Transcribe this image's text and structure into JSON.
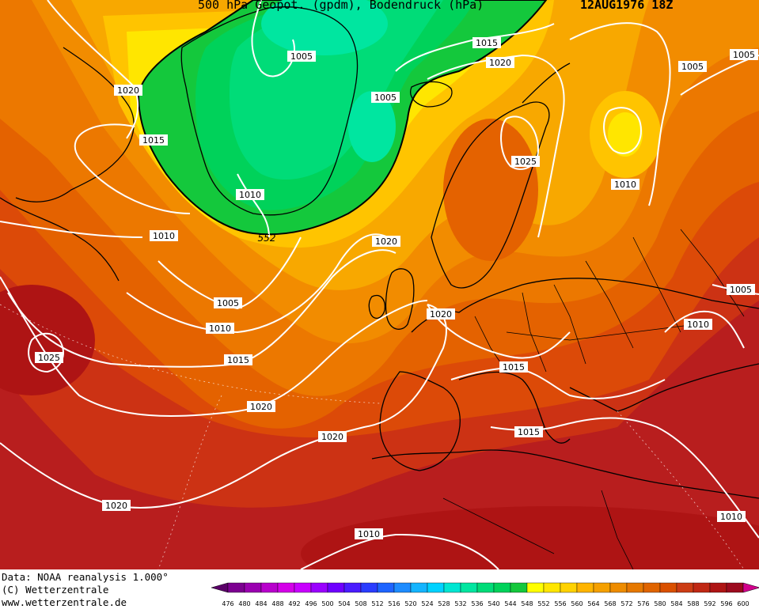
{
  "header": {
    "title": "500 hPa Geopot. (gpdm), Bodendruck (hPa)",
    "date": "12AUG1976 18Z"
  },
  "footer": {
    "data_line": "Data: NOAA reanalysis 1.000°",
    "copyright": "(C) Wetterzentrale",
    "url": "www.wetterzentrale.de"
  },
  "legend": {
    "values": [
      "476",
      "480",
      "484",
      "488",
      "492",
      "496",
      "500",
      "504",
      "508",
      "512",
      "516",
      "520",
      "524",
      "528",
      "532",
      "536",
      "540",
      "544",
      "548",
      "552",
      "556",
      "560",
      "564",
      "568",
      "572",
      "576",
      "580",
      "584",
      "588",
      "592",
      "596",
      "600"
    ],
    "colors": [
      "#5a0068",
      "#7c0090",
      "#9a00b0",
      "#b800cc",
      "#d400e8",
      "#c800ff",
      "#9a00ff",
      "#6e00ff",
      "#4a1cff",
      "#2a3cff",
      "#1e64ff",
      "#1e8cff",
      "#14b4ff",
      "#00d2ff",
      "#00e6d2",
      "#00e6a0",
      "#00dc78",
      "#00d25a",
      "#14c83c",
      "#ffff00",
      "#ffe600",
      "#ffd200",
      "#ffb400",
      "#f5a000",
      "#ee8c00",
      "#e67800",
      "#e06400",
      "#da5000",
      "#cc3c14",
      "#c02814",
      "#ae1414",
      "#9c0a1e",
      "#d2008c"
    ]
  },
  "isobar_labels": [
    "1005",
    "1015",
    "1020",
    "1005",
    "1020",
    "1015",
    "1005",
    "1025",
    "1010",
    "1005",
    "1010",
    "1010",
    "1020",
    "1005",
    "1010",
    "1015",
    "1020",
    "1025",
    "1020",
    "1010",
    "1015",
    "1005",
    "1015",
    "1020",
    "1020",
    "1010",
    "1010",
    "552"
  ]
}
